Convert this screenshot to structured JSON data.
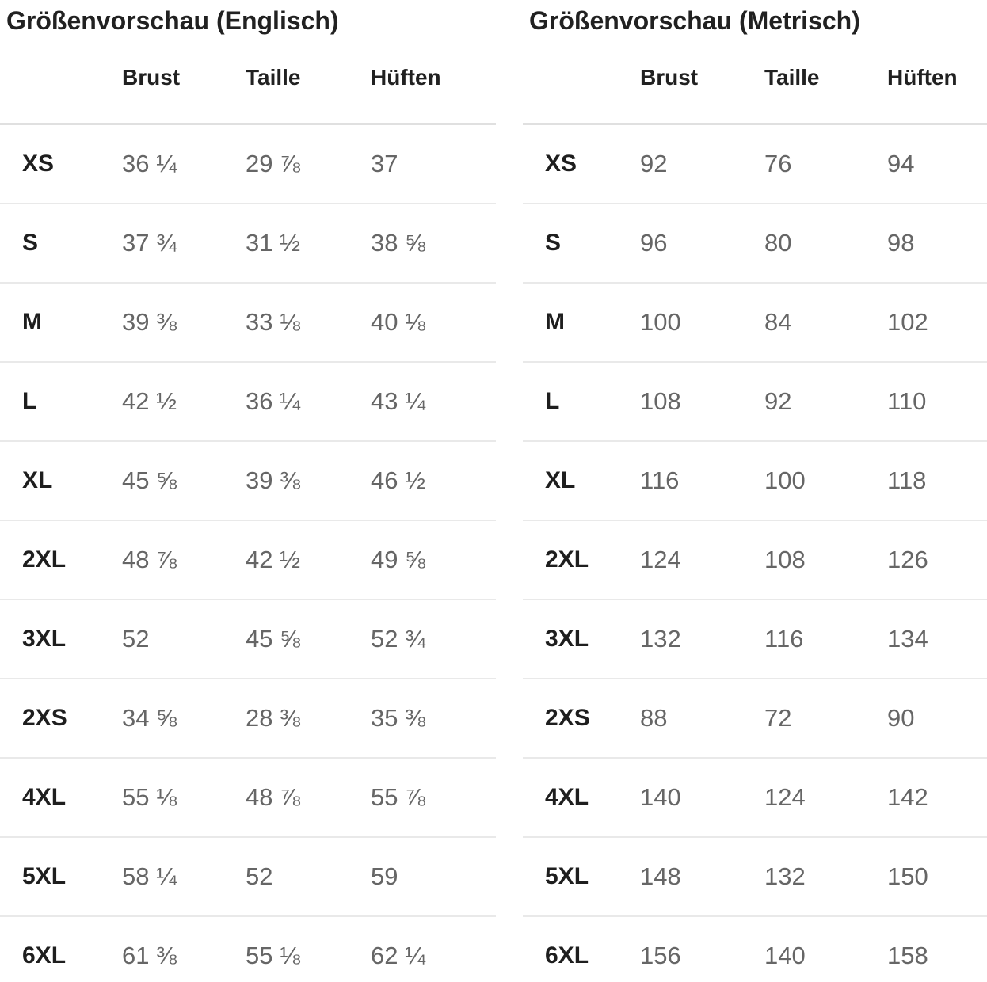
{
  "tables": [
    {
      "title": "Größenvorschau (Englisch)",
      "columns": [
        "Brust",
        "Taille",
        "Hüften"
      ],
      "rows": [
        {
          "size": "XS",
          "values": [
            "36 ¼",
            "29 ⅞",
            "37"
          ]
        },
        {
          "size": "S",
          "values": [
            "37 ¾",
            "31 ½",
            "38 ⅝"
          ]
        },
        {
          "size": "M",
          "values": [
            "39 ⅜",
            "33 ⅛",
            "40 ⅛"
          ]
        },
        {
          "size": "L",
          "values": [
            "42 ½",
            "36 ¼",
            "43 ¼"
          ]
        },
        {
          "size": "XL",
          "values": [
            "45 ⅝",
            "39 ⅜",
            "46 ½"
          ]
        },
        {
          "size": "2XL",
          "values": [
            "48 ⅞",
            "42 ½",
            "49 ⅝"
          ]
        },
        {
          "size": "3XL",
          "values": [
            "52",
            "45 ⅝",
            "52 ¾"
          ]
        },
        {
          "size": "2XS",
          "values": [
            "34 ⅝",
            "28 ⅜",
            "35 ⅜"
          ]
        },
        {
          "size": "4XL",
          "values": [
            "55 ⅛",
            "48 ⅞",
            "55 ⅞"
          ]
        },
        {
          "size": "5XL",
          "values": [
            "58 ¼",
            "52",
            "59"
          ]
        },
        {
          "size": "6XL",
          "values": [
            "61 ⅜",
            "55 ⅛",
            "62 ¼"
          ]
        }
      ]
    },
    {
      "title": "Größenvorschau (Metrisch)",
      "columns": [
        "Brust",
        "Taille",
        "Hüften"
      ],
      "rows": [
        {
          "size": "XS",
          "values": [
            "92",
            "76",
            "94"
          ]
        },
        {
          "size": "S",
          "values": [
            "96",
            "80",
            "98"
          ]
        },
        {
          "size": "M",
          "values": [
            "100",
            "84",
            "102"
          ]
        },
        {
          "size": "L",
          "values": [
            "108",
            "92",
            "110"
          ]
        },
        {
          "size": "XL",
          "values": [
            "116",
            "100",
            "118"
          ]
        },
        {
          "size": "2XL",
          "values": [
            "124",
            "108",
            "126"
          ]
        },
        {
          "size": "3XL",
          "values": [
            "132",
            "116",
            "134"
          ]
        },
        {
          "size": "2XS",
          "values": [
            "88",
            "72",
            "90"
          ]
        },
        {
          "size": "4XL",
          "values": [
            "140",
            "124",
            "142"
          ]
        },
        {
          "size": "5XL",
          "values": [
            "148",
            "132",
            "150"
          ]
        },
        {
          "size": "6XL",
          "values": [
            "156",
            "140",
            "158"
          ]
        }
      ]
    }
  ],
  "colors": {
    "heading_text": "#212121",
    "value_text": "#666666",
    "header_rule": "#e0e0e0",
    "row_rule": "#e9e9e9",
    "background": "#ffffff"
  }
}
